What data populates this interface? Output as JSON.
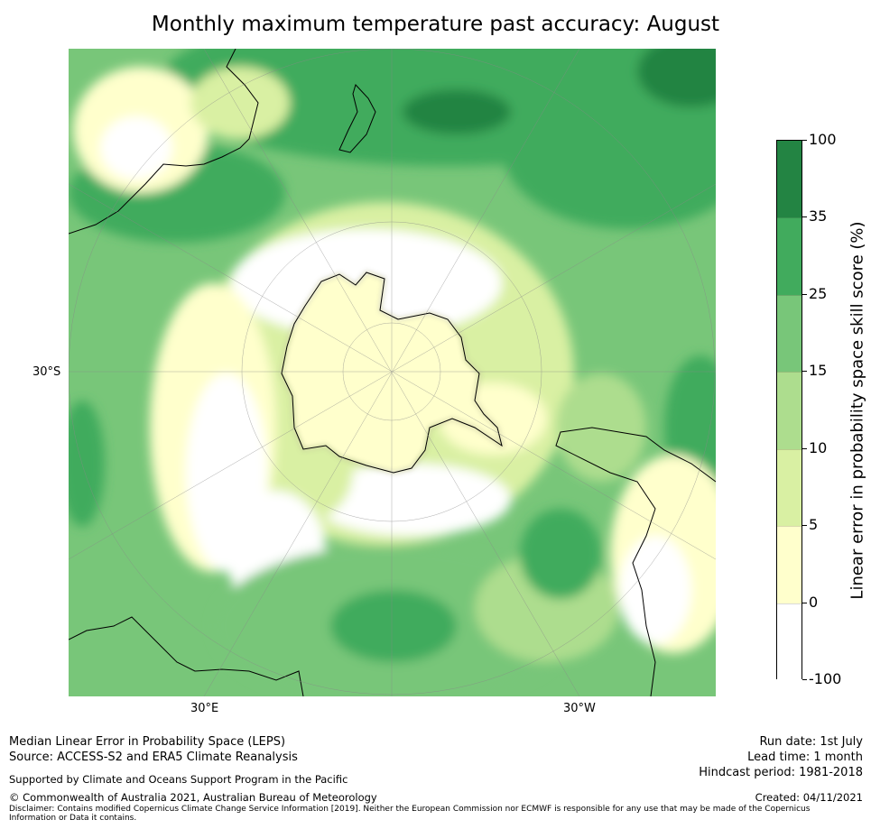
{
  "title": "Monthly maximum temperature past accuracy: August",
  "map": {
    "projection": "south-polar-stereographic",
    "lat_label": "30°S",
    "lon_labels": [
      "30°E",
      "30°W"
    ],
    "continents": [
      "Antarctica",
      "Australia",
      "New Zealand",
      "South America",
      "Africa"
    ]
  },
  "colorbar": {
    "title": "Linear error in probability space skill score (%)",
    "ticks": [
      "100",
      "35",
      "25",
      "15",
      "10",
      "5",
      "0",
      "-100"
    ],
    "bins": [
      {
        "range": "-100 to 0",
        "color": "#ffffff"
      },
      {
        "range": "0 to 5",
        "color": "#ffffcc"
      },
      {
        "range": "5 to 10",
        "color": "#d9f0a3"
      },
      {
        "range": "10 to 15",
        "color": "#addd8e"
      },
      {
        "range": "15 to 25",
        "color": "#78c679"
      },
      {
        "range": "25 to 35",
        "color": "#41ab5d"
      },
      {
        "range": "35 to 100",
        "color": "#238443"
      }
    ]
  },
  "footer": {
    "left_lines": [
      "Median Linear Error in Probability Space (LEPS)",
      "Source: ACCESS-S2 and ERA5 Climate Reanalysis"
    ],
    "right_lines": [
      "Run date: 1st July",
      "Lead time: 1 month",
      "Hindcast period: 1981-2018"
    ],
    "supported": "Supported by Climate and Oceans Support Program in the Pacific",
    "copyright": "© Commonwealth of Australia 2021, Australian Bureau of Meteorology",
    "created": "Created: 04/11/2021",
    "disclaimer": "Disclaimer: Contains modified Copernicus Climate Change Service Information [2019]. Neither the European Commission nor ECMWF is responsible for any use that may be made of the Copernicus Information or Data it contains."
  }
}
